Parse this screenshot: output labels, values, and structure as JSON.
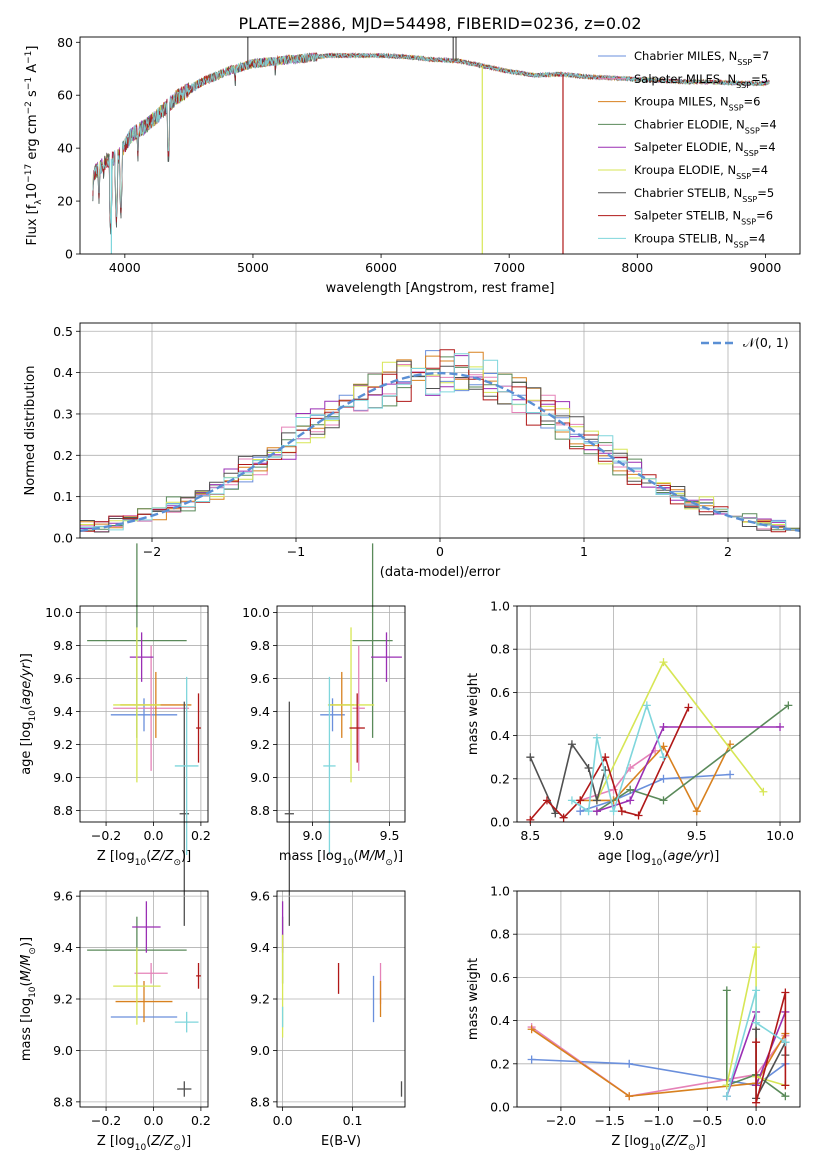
{
  "figure_title": "PLATE=2886, MJD=54498, FIBERID=0236, z=0.02",
  "colors": {
    "Chabrier MILES": "#6a8fdc",
    "Salpeter MILES": "#e582b8",
    "Kroupa MILES": "#d8811f",
    "Chabrier ELODIE": "#5a8a5a",
    "Salpeter ELODIE": "#9a2fb4",
    "Kroupa ELODIE": "#d7e655",
    "Chabrier STELIB": "#505050",
    "Salpeter STELIB": "#b01818",
    "Kroupa STELIB": "#7fd6dc"
  },
  "chart_data": [
    {
      "id": "spectrum",
      "type": "line",
      "title": "PLATE=2886, MJD=54498, FIBERID=0236, z=0.02",
      "xlabel": "wavelength [Angstrom, rest frame]",
      "ylabel": "Flux [f_λ10^-17 erg cm^-2 s^-1 A^-1]",
      "xlim": [
        3650,
        9270
      ],
      "ylim": [
        0,
        82
      ],
      "xticks": [
        4000,
        5000,
        6000,
        7000,
        8000,
        9000
      ],
      "yticks": [
        0,
        20,
        40,
        60,
        80
      ],
      "grid": false,
      "legend_position": "right",
      "legend": [
        {
          "label": "Chabrier MILES, N",
          "sub": "SSP",
          "suffix": "=7"
        },
        {
          "label": "Salpeter MILES, N",
          "sub": "SSP",
          "suffix": "=5"
        },
        {
          "label": "Kroupa MILES, N",
          "sub": "SSP",
          "suffix": "=6"
        },
        {
          "label": "Chabrier ELODIE, N",
          "sub": "SSP",
          "suffix": "=4"
        },
        {
          "label": "Salpeter ELODIE, N",
          "sub": "SSP",
          "suffix": "=4"
        },
        {
          "label": "Kroupa ELODIE, N",
          "sub": "SSP",
          "suffix": "=4"
        },
        {
          "label": "Chabrier STELIB, N",
          "sub": "SSP",
          "suffix": "=5"
        },
        {
          "label": "Salpeter STELIB, N",
          "sub": "SSP",
          "suffix": "=6"
        },
        {
          "label": "Kroupa STELIB, N",
          "sub": "SSP",
          "suffix": "=4"
        }
      ],
      "continuum": {
        "x": [
          3750,
          3850,
          3950,
          4050,
          4150,
          4250,
          4400,
          4600,
          4800,
          5000,
          5200,
          5400,
          5600,
          5800,
          6000,
          6200,
          6400,
          6600,
          6800,
          7000,
          7200,
          7400,
          7600,
          7800,
          8000,
          8200,
          8400,
          8600,
          8800,
          9000,
          9030
        ],
        "y": [
          30,
          35,
          37,
          45,
          48,
          52,
          59,
          65,
          69,
          72,
          73,
          74,
          75,
          75,
          75,
          74.5,
          73.5,
          73,
          71,
          69,
          67.5,
          68,
          67,
          66.5,
          66,
          65.5,
          65,
          65,
          64.5,
          64.5,
          65
        ]
      },
      "absorption_dips": [
        {
          "x": 3750,
          "y": 20
        },
        {
          "x": 3798,
          "y": 19
        },
        {
          "x": 3835,
          "y": 27
        },
        {
          "x": 3889,
          "y": 6
        },
        {
          "x": 3934,
          "y": 10
        },
        {
          "x": 3969,
          "y": 12
        },
        {
          "x": 4102,
          "y": 35
        },
        {
          "x": 4340,
          "y": 32
        },
        {
          "x": 4861,
          "y": 62
        },
        {
          "x": 5175,
          "y": 66
        }
      ],
      "spikes": [
        {
          "x": 6563,
          "y": 82,
          "series": "Chabrier STELIB"
        },
        {
          "x": 6585,
          "y": 82,
          "series": "Chabrier STELIB"
        },
        {
          "x": 6790,
          "y": 0,
          "series": "Kroupa ELODIE"
        },
        {
          "x": 7420,
          "y": 0,
          "series": "Salpeter STELIB"
        },
        {
          "x": 3895,
          "y": 0,
          "series": "Kroupa STELIB"
        },
        {
          "x": 4960,
          "y": 82,
          "series": "Chabrier STELIB"
        }
      ]
    },
    {
      "id": "residuals",
      "type": "line",
      "xlabel": "(data-model)/error",
      "ylabel": "Normed distribution",
      "xlim": [
        -2.5,
        2.5
      ],
      "ylim": [
        0,
        0.52
      ],
      "xticks": [
        -2,
        -1,
        0,
        1,
        2
      ],
      "yticks": [
        0.0,
        0.1,
        0.2,
        0.3,
        0.4,
        0.5
      ],
      "grid": true,
      "legend_position": "top-right",
      "legend": [
        "𝒩(0, 1)"
      ],
      "reference_curve": "normal(0,1)",
      "histogram": {
        "bin_width": 0.1,
        "series": [
          "Chabrier MILES",
          "Salpeter MILES",
          "Kroupa MILES",
          "Chabrier ELODIE",
          "Salpeter ELODIE",
          "Kroupa ELODIE",
          "Chabrier STELIB",
          "Salpeter STELIB",
          "Kroupa STELIB"
        ]
      }
    },
    {
      "id": "age_vs_Z",
      "type": "scatter",
      "xlabel": "Z [log10(Z/Z☉)]",
      "ylabel": "age [log10(age/yr)]",
      "xlim": [
        -0.31,
        0.23
      ],
      "ylim": [
        8.73,
        10.04
      ],
      "xticks": [
        -0.2,
        0.0,
        0.2
      ],
      "yticks": [
        8.8,
        9.0,
        9.2,
        9.4,
        9.6,
        9.8,
        10.0
      ],
      "grid": true,
      "points": [
        {
          "series": "Chabrier MILES",
          "x": -0.04,
          "xerr": 0.14,
          "y": 9.38,
          "yerr": 0.1
        },
        {
          "series": "Salpeter MILES",
          "x": -0.01,
          "xerr": 0.16,
          "y": 9.42,
          "yerr": 0.38
        },
        {
          "series": "Kroupa MILES",
          "x": 0.01,
          "xerr": 0.15,
          "y": 9.44,
          "yerr": 0.2
        },
        {
          "series": "Chabrier ELODIE",
          "x": -0.07,
          "xerr": 0.21,
          "y": 9.83,
          "yerr": 0.59
        },
        {
          "series": "Salpeter ELODIE",
          "x": -0.05,
          "xerr": 0.05,
          "y": 9.73,
          "yerr": 0.15
        },
        {
          "series": "Kroupa ELODIE",
          "x": -0.07,
          "xerr": 0.1,
          "y": 9.44,
          "yerr": 0.47
        },
        {
          "series": "Chabrier STELIB",
          "x": 0.13,
          "xerr": 0.02,
          "y": 8.78,
          "yerr": 0.68
        },
        {
          "series": "Salpeter STELIB",
          "x": 0.19,
          "xerr": 0.01,
          "y": 9.3,
          "yerr": 0.21
        },
        {
          "series": "Kroupa STELIB",
          "x": 0.14,
          "xerr": 0.05,
          "y": 9.07,
          "yerr": 0.54
        }
      ]
    },
    {
      "id": "age_vs_mass",
      "type": "scatter",
      "xlabel": "mass [log10(M/M☉)]",
      "ylabel": "",
      "xlim": [
        8.77,
        9.6
      ],
      "ylim": [
        8.73,
        10.04
      ],
      "xticks": [
        9.0,
        9.5
      ],
      "yticks": [
        8.8,
        9.0,
        9.2,
        9.4,
        9.6,
        9.8,
        10.0
      ],
      "grid": true,
      "points": [
        {
          "series": "Chabrier MILES",
          "x": 9.13,
          "xerr": 0.08,
          "y": 9.38,
          "yerr": 0.1
        },
        {
          "series": "Salpeter MILES",
          "x": 9.3,
          "xerr": 0.04,
          "y": 9.42,
          "yerr": 0.38
        },
        {
          "series": "Kroupa MILES",
          "x": 9.19,
          "xerr": 0.08,
          "y": 9.44,
          "yerr": 0.2
        },
        {
          "series": "Chabrier ELODIE",
          "x": 9.39,
          "xerr": 0.13,
          "y": 9.83,
          "yerr": 0.59
        },
        {
          "series": "Salpeter ELODIE",
          "x": 9.48,
          "xerr": 0.1,
          "y": 9.73,
          "yerr": 0.15
        },
        {
          "series": "Kroupa ELODIE",
          "x": 9.25,
          "xerr": 0.15,
          "y": 9.44,
          "yerr": 0.47
        },
        {
          "series": "Chabrier STELIB",
          "x": 8.85,
          "xerr": 0.03,
          "y": 8.78,
          "yerr": 0.68
        },
        {
          "series": "Salpeter STELIB",
          "x": 9.29,
          "xerr": 0.05,
          "y": 9.3,
          "yerr": 0.21
        },
        {
          "series": "Kroupa STELIB",
          "x": 9.11,
          "xerr": 0.04,
          "y": 9.07,
          "yerr": 0.54
        }
      ]
    },
    {
      "id": "weight_vs_age",
      "type": "line",
      "xlabel": "age [log10(age/yr)]",
      "ylabel": "mass weight",
      "xlim": [
        8.42,
        10.12
      ],
      "ylim": [
        0,
        1
      ],
      "xticks": [
        8.5,
        9.0,
        9.5,
        10.0
      ],
      "yticks": [
        0.0,
        0.2,
        0.4,
        0.6,
        0.8,
        1.0
      ],
      "grid": true,
      "series": [
        {
          "name": "Chabrier MILES",
          "x": [
            8.8,
            9.0,
            9.3,
            9.7
          ],
          "y": [
            0.05,
            0.1,
            0.2,
            0.22
          ]
        },
        {
          "name": "Salpeter MILES",
          "x": [
            8.8,
            9.0,
            9.1,
            9.25
          ],
          "y": [
            0.1,
            0.15,
            0.25,
            0.33
          ]
        },
        {
          "name": "Kroupa MILES",
          "x": [
            8.8,
            9.0,
            9.3,
            9.5,
            9.7
          ],
          "y": [
            0.1,
            0.1,
            0.35,
            0.05,
            0.36
          ]
        },
        {
          "name": "Chabrier ELODIE",
          "x": [
            8.9,
            9.1,
            9.3,
            10.05
          ],
          "y": [
            0.05,
            0.15,
            0.1,
            0.54
          ]
        },
        {
          "name": "Salpeter ELODIE",
          "x": [
            8.9,
            9.1,
            9.3,
            10.0
          ],
          "y": [
            0.05,
            0.1,
            0.44,
            0.44
          ]
        },
        {
          "name": "Kroupa ELODIE",
          "x": [
            8.9,
            9.3,
            9.9
          ],
          "y": [
            0.1,
            0.74,
            0.14
          ]
        },
        {
          "name": "Chabrier STELIB",
          "x": [
            8.5,
            8.65,
            8.75,
            8.85,
            8.9,
            8.95
          ],
          "y": [
            0.3,
            0.04,
            0.36,
            0.25,
            0.1,
            0.24
          ]
        },
        {
          "name": "Salpeter STELIB",
          "x": [
            8.5,
            8.6,
            8.7,
            8.8,
            8.95,
            9.05,
            9.15,
            9.45
          ],
          "y": [
            0.01,
            0.1,
            0.02,
            0.1,
            0.3,
            0.05,
            0.03,
            0.53
          ]
        },
        {
          "name": "Kroupa STELIB",
          "x": [
            8.75,
            8.85,
            8.9,
            9.0,
            9.2,
            9.3
          ],
          "y": [
            0.1,
            0.05,
            0.39,
            0.05,
            0.54,
            0.3
          ]
        }
      ]
    },
    {
      "id": "mass_vs_Z",
      "type": "scatter",
      "xlabel": "Z [log10(Z/Z☉)]",
      "ylabel": "mass [log10(M/M☉)]",
      "xlim": [
        -0.31,
        0.23
      ],
      "ylim": [
        8.78,
        9.62
      ],
      "xticks": [
        -0.2,
        0.0,
        0.2
      ],
      "yticks": [
        8.8,
        9.0,
        9.2,
        9.4,
        9.6
      ],
      "grid": true,
      "points": [
        {
          "series": "Chabrier MILES",
          "x": -0.04,
          "xerr": 0.14,
          "y": 9.13,
          "yerr": 0.0
        },
        {
          "series": "Salpeter MILES",
          "x": -0.01,
          "xerr": 0.07,
          "y": 9.3,
          "yerr": 0.04
        },
        {
          "series": "Kroupa MILES",
          "x": -0.04,
          "xerr": 0.12,
          "y": 9.19,
          "yerr": 0.08
        },
        {
          "series": "Chabrier ELODIE",
          "x": -0.07,
          "xerr": 0.21,
          "y": 9.39,
          "yerr": 0.13
        },
        {
          "series": "Salpeter ELODIE",
          "x": -0.03,
          "xerr": 0.06,
          "y": 9.48,
          "yerr": 0.1
        },
        {
          "series": "Kroupa ELODIE",
          "x": -0.07,
          "xerr": 0.1,
          "y": 9.25,
          "yerr": 0.15
        },
        {
          "series": "Chabrier STELIB",
          "x": 0.13,
          "xerr": 0.03,
          "y": 8.85,
          "yerr": 0.03
        },
        {
          "series": "Salpeter STELIB",
          "x": 0.19,
          "xerr": 0.01,
          "y": 9.29,
          "yerr": 0.05
        },
        {
          "series": "Kroupa STELIB",
          "x": 0.14,
          "xerr": 0.05,
          "y": 9.11,
          "yerr": 0.04
        }
      ]
    },
    {
      "id": "mass_vs_ebv",
      "type": "scatter",
      "xlabel": "E(B-V)",
      "ylabel": "",
      "xlim": [
        -0.008,
        0.175
      ],
      "ylim": [
        8.78,
        9.62
      ],
      "xticks": [
        0.0,
        0.1
      ],
      "yticks": [
        8.8,
        9.0,
        9.2,
        9.4,
        9.6
      ],
      "grid": true,
      "points": [
        {
          "series": "Chabrier MILES",
          "x": 0.13,
          "xerr": 0.0,
          "y": 9.2,
          "yerr": 0.09
        },
        {
          "series": "Salpeter MILES",
          "x": 0.14,
          "xerr": 0.0,
          "y": 9.26,
          "yerr": 0.08
        },
        {
          "series": "Kroupa MILES",
          "x": 0.14,
          "xerr": 0.0,
          "y": 9.2,
          "yerr": 0.07
        },
        {
          "series": "Chabrier ELODIE",
          "x": 0.0,
          "xerr": 0.0,
          "y": 9.39,
          "yerr": 0.13
        },
        {
          "series": "Salpeter ELODIE",
          "x": 0.0,
          "xerr": 0.0,
          "y": 9.48,
          "yerr": 0.1
        },
        {
          "series": "Kroupa ELODIE",
          "x": 0.0,
          "xerr": 0.0,
          "y": 9.25,
          "yerr": 0.2
        },
        {
          "series": "Chabrier STELIB",
          "x": 0.17,
          "xerr": 0.0,
          "y": 8.85,
          "yerr": 0.03
        },
        {
          "series": "Salpeter STELIB",
          "x": 0.08,
          "xerr": 0.0,
          "y": 9.28,
          "yerr": 0.06
        },
        {
          "series": "Kroupa STELIB",
          "x": 0.0,
          "xerr": 0.0,
          "y": 9.13,
          "yerr": 0.04
        }
      ]
    },
    {
      "id": "weight_vs_Z",
      "type": "line",
      "xlabel": "Z [log10(Z/Z☉)]",
      "ylabel": "mass weight",
      "xlim": [
        -2.45,
        0.45
      ],
      "ylim": [
        0,
        1
      ],
      "xticks": [
        -2.0,
        -1.5,
        -1.0,
        -0.5,
        0.0
      ],
      "yticks": [
        0.0,
        0.2,
        0.4,
        0.6,
        0.8,
        1.0
      ],
      "grid": true,
      "series": [
        {
          "name": "Chabrier MILES",
          "x": [
            -2.3,
            -1.3,
            0.0,
            0.3
          ],
          "y": [
            0.22,
            0.2,
            0.1,
            0.2
          ]
        },
        {
          "name": "Salpeter MILES",
          "x": [
            -2.3,
            -1.3,
            0.0,
            0.3
          ],
          "y": [
            0.37,
            0.05,
            0.15,
            0.33
          ]
        },
        {
          "name": "Kroupa MILES",
          "x": [
            -2.3,
            -1.3,
            0.0,
            0.3
          ],
          "y": [
            0.36,
            0.05,
            0.11,
            0.34
          ]
        },
        {
          "name": "Chabrier ELODIE",
          "x": [
            -0.3,
            -0.3,
            0.0,
            0.3
          ],
          "y": [
            0.54,
            0.1,
            0.15,
            0.05
          ]
        },
        {
          "name": "Salpeter ELODIE",
          "x": [
            -0.3,
            0.0,
            0.0,
            0.3
          ],
          "y": [
            0.05,
            0.44,
            0.1,
            0.44
          ]
        },
        {
          "name": "Kroupa ELODIE",
          "x": [
            -0.3,
            0.0,
            0.0,
            0.3
          ],
          "y": [
            0.1,
            0.74,
            0.14,
            0.1
          ]
        },
        {
          "name": "Chabrier STELIB",
          "x": [
            0.0,
            0.0,
            0.3,
            0.3
          ],
          "y": [
            0.36,
            0.04,
            0.3,
            0.24
          ]
        },
        {
          "name": "Salpeter STELIB",
          "x": [
            0.0,
            0.0,
            0.3,
            0.3
          ],
          "y": [
            0.3,
            0.02,
            0.53,
            0.1
          ]
        },
        {
          "name": "Kroupa STELIB",
          "x": [
            -0.3,
            0.0,
            0.0,
            0.3
          ],
          "y": [
            0.05,
            0.54,
            0.39,
            0.3
          ]
        }
      ]
    }
  ]
}
